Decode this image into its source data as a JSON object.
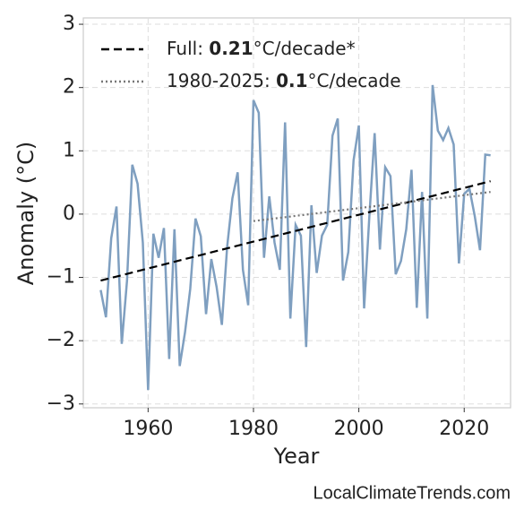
{
  "chart_data": {
    "type": "line",
    "xlabel": "Year",
    "ylabel": "Anomaly (°C)",
    "source": "LocalClimateTrends.com",
    "x": [
      1951,
      1952,
      1953,
      1954,
      1955,
      1956,
      1957,
      1958,
      1959,
      1960,
      1961,
      1962,
      1963,
      1964,
      1965,
      1966,
      1967,
      1968,
      1969,
      1970,
      1971,
      1972,
      1973,
      1974,
      1975,
      1976,
      1977,
      1978,
      1979,
      1980,
      1981,
      1982,
      1983,
      1984,
      1985,
      1986,
      1987,
      1988,
      1989,
      1990,
      1991,
      1992,
      1993,
      1994,
      1995,
      1996,
      1997,
      1998,
      1999,
      2000,
      2001,
      2002,
      2003,
      2004,
      2005,
      2006,
      2007,
      2008,
      2009,
      2010,
      2011,
      2012,
      2013,
      2014,
      2015,
      2016,
      2017,
      2018,
      2019,
      2020,
      2021,
      2022,
      2023,
      2024,
      2025
    ],
    "series": [
      {
        "color": "#7f9fc0",
        "style": "solid",
        "values": [
          -1.2,
          -1.63,
          -0.38,
          0.12,
          -2.05,
          -1.05,
          0.78,
          0.48,
          -0.45,
          -2.78,
          -0.31,
          -0.69,
          -0.22,
          -2.29,
          -0.24,
          -2.4,
          -1.87,
          -1.18,
          -0.07,
          -0.35,
          -1.58,
          -0.71,
          -1.15,
          -1.75,
          -0.52,
          0.25,
          0.66,
          -0.88,
          -1.44,
          1.8,
          1.6,
          -0.69,
          0.28,
          -0.45,
          -0.88,
          1.45,
          -1.65,
          -0.17,
          -0.34,
          -2.1,
          0.14,
          -0.93,
          -0.34,
          -0.17,
          1.24,
          1.51,
          -1.05,
          -0.6,
          0.85,
          1.4,
          -1.49,
          -0.03,
          1.28,
          -0.56,
          0.74,
          0.6,
          -0.95,
          -0.74,
          -0.24,
          0.7,
          -1.48,
          0.35,
          -1.65,
          2.04,
          1.32,
          1.17,
          1.36,
          1.1,
          -0.78,
          0.32,
          0.4,
          -0.03,
          -0.57,
          0.94,
          0.93
        ]
      },
      {
        "name_parts": [
          "Full: ",
          "0.21",
          "°C/decade*"
        ],
        "color": "#000000",
        "style": "dashed",
        "x": [
          1951,
          2025
        ],
        "values": [
          -1.05,
          0.52
        ]
      },
      {
        "name_parts": [
          "1980-2025: ",
          "0.1",
          "°C/decade"
        ],
        "color": "#777777",
        "style": "dotted",
        "x": [
          1980,
          2025
        ],
        "values": [
          -0.11,
          0.35
        ]
      }
    ],
    "xlim": [
      1947.7,
      2028.8
    ],
    "ylim": [
      -3.06,
      3.1
    ],
    "xticks": [
      1960,
      1980,
      2000,
      2020
    ],
    "yticks": [
      {
        "value": -3,
        "label": "−3"
      },
      {
        "value": -2,
        "label": "−2"
      },
      {
        "value": -1,
        "label": "−1"
      },
      0,
      1,
      2,
      3
    ],
    "grid": true,
    "legend": "upper left"
  }
}
